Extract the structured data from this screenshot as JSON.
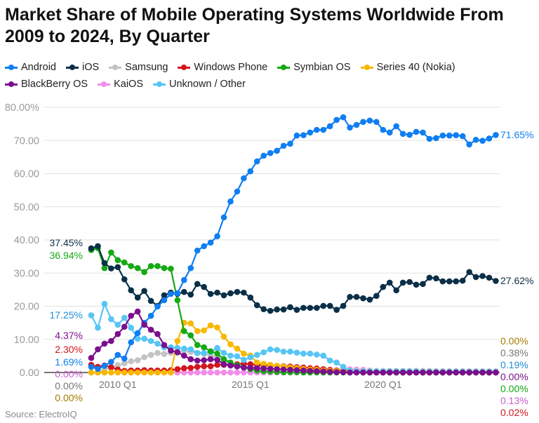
{
  "title": "Market Share of Mobile Operating Systems Worldwide From 2009 to 2024, By Quarter",
  "source": "Source: ElectroIQ",
  "chart_data": {
    "type": "line",
    "title": "Market Share of Mobile Operating Systems Worldwide From 2009 to 2024, By Quarter",
    "xlabel": "",
    "ylabel": "",
    "ylim": [
      0,
      80
    ],
    "grid": true,
    "legend_placement": "top",
    "y_ticks": [
      "0.00",
      "10.00",
      "20.00",
      "30.00",
      "40.00",
      "50.00",
      "60.00",
      "70.00",
      "80.00%"
    ],
    "x_tick_labels": [
      {
        "at": "2010 Q1",
        "label": "2010 Q1"
      },
      {
        "at": "2015 Q1",
        "label": "2015 Q1"
      },
      {
        "at": "2020 Q1",
        "label": "2020 Q1"
      }
    ],
    "x": [
      "2009 Q1",
      "2009 Q2",
      "2009 Q3",
      "2009 Q4",
      "2010 Q1",
      "2010 Q2",
      "2010 Q3",
      "2010 Q4",
      "2011 Q1",
      "2011 Q2",
      "2011 Q3",
      "2011 Q4",
      "2012 Q1",
      "2012 Q2",
      "2012 Q3",
      "2012 Q4",
      "2013 Q1",
      "2013 Q2",
      "2013 Q3",
      "2013 Q4",
      "2014 Q1",
      "2014 Q2",
      "2014 Q3",
      "2014 Q4",
      "2015 Q1",
      "2015 Q2",
      "2015 Q3",
      "2015 Q4",
      "2016 Q1",
      "2016 Q2",
      "2016 Q3",
      "2016 Q4",
      "2017 Q1",
      "2017 Q2",
      "2017 Q3",
      "2017 Q4",
      "2018 Q1",
      "2018 Q2",
      "2018 Q3",
      "2018 Q4",
      "2019 Q1",
      "2019 Q2",
      "2019 Q3",
      "2019 Q4",
      "2020 Q1",
      "2020 Q2",
      "2020 Q3",
      "2020 Q4",
      "2021 Q1",
      "2021 Q2",
      "2021 Q3",
      "2021 Q4",
      "2022 Q1",
      "2022 Q2",
      "2022 Q3",
      "2022 Q4",
      "2023 Q1",
      "2023 Q2",
      "2023 Q3",
      "2023 Q4",
      "2024 Q1",
      "2024 Q2"
    ],
    "series": [
      {
        "name": "Android",
        "color": "#0f7ef2",
        "label_color": "#0f7ef2",
        "start_label": "1.69%",
        "end_label": "71.65%",
        "values": [
          1.69,
          1.1,
          2.0,
          3.2,
          5.3,
          4.2,
          9.1,
          11.9,
          15.0,
          17.1,
          19.9,
          21.8,
          23.7,
          23.9,
          27.9,
          31.5,
          36.8,
          38.1,
          39.2,
          41.1,
          46.8,
          51.6,
          54.6,
          58.6,
          60.7,
          63.7,
          65.4,
          66.2,
          66.9,
          68.4,
          69.0,
          71.5,
          71.6,
          72.4,
          73.2,
          73.2,
          74.3,
          76.2,
          77.0,
          73.9,
          74.7,
          75.6,
          76.0,
          75.6,
          73.2,
          72.4,
          74.3,
          72.0,
          71.7,
          72.6,
          72.4,
          70.5,
          70.7,
          71.5,
          71.5,
          71.6,
          71.3,
          68.8,
          70.2,
          69.9,
          70.6,
          71.65
        ]
      },
      {
        "name": "iOS",
        "color": "#0b2f47",
        "label_color": "#0b2f47",
        "start_label": "37.45%",
        "end_label": "27.62%",
        "values": [
          37.45,
          38.1,
          33.0,
          31.4,
          31.8,
          28.1,
          24.8,
          22.6,
          24.6,
          21.6,
          20.1,
          23.3,
          24.1,
          23.7,
          24.3,
          23.5,
          26.7,
          25.8,
          23.7,
          24.1,
          23.3,
          23.9,
          24.3,
          24.1,
          22.6,
          20.3,
          19.1,
          18.6,
          19.0,
          19.0,
          19.7,
          18.9,
          19.5,
          19.5,
          19.5,
          20.1,
          20.1,
          18.9,
          20.1,
          22.8,
          22.8,
          22.4,
          22.0,
          23.1,
          25.8,
          27.1,
          24.8,
          27.1,
          27.3,
          26.5,
          26.7,
          28.6,
          28.4,
          27.5,
          27.5,
          27.5,
          27.7,
          30.3,
          28.8,
          29.1,
          28.6,
          27.62
        ]
      },
      {
        "name": "Samsung",
        "color": "#c3c3c3",
        "label_color": "#777777",
        "start_label": "0.00%",
        "end_label": "0.38%",
        "values": [
          0,
          0,
          0.8,
          1.5,
          2.2,
          2.8,
          3.4,
          3.7,
          4.6,
          5.3,
          5.9,
          5.6,
          5.9,
          6.0,
          6.5,
          6.2,
          5.8,
          5.6,
          5.1,
          4.5,
          3.6,
          2.8,
          2.3,
          2.0,
          1.7,
          1.5,
          1.4,
          1.3,
          1.2,
          1.1,
          1.0,
          0.9,
          0.9,
          0.8,
          0.8,
          0.7,
          0.7,
          0.6,
          0.6,
          0.6,
          0.5,
          0.5,
          0.5,
          0.5,
          0.5,
          0.5,
          0.5,
          0.5,
          0.5,
          0.5,
          0.5,
          0.5,
          0.45,
          0.45,
          0.4,
          0.4,
          0.4,
          0.4,
          0.4,
          0.4,
          0.38,
          0.38
        ]
      },
      {
        "name": "Windows Phone",
        "color": "#d2161d",
        "label_color": "#d2161d",
        "start_label": "2.30%",
        "end_label": "0.02%",
        "values": [
          2.3,
          1.7,
          2.1,
          1.6,
          0.9,
          0.5,
          0.6,
          0.6,
          0.7,
          0.6,
          0.6,
          0.6,
          0.7,
          1.0,
          1.3,
          1.4,
          1.7,
          1.9,
          1.9,
          2.3,
          2.3,
          2.3,
          2.5,
          2.7,
          2.5,
          2.3,
          2.2,
          2.1,
          2.0,
          1.9,
          1.8,
          1.6,
          1.5,
          1.3,
          1.2,
          1.0,
          0.8,
          0.6,
          0.5,
          0.3,
          0.2,
          0.1,
          0.02,
          0.02,
          0.02,
          0.02,
          0.02,
          0.02,
          0.02,
          0.02,
          0.02,
          0.02,
          0.02,
          0.02,
          0.02,
          0.02,
          0.02,
          0.02,
          0.02,
          0.02,
          0.02,
          0.02
        ]
      },
      {
        "name": "Symbian OS",
        "color": "#14aa14",
        "label_color": "#14aa14",
        "start_label": "36.94%",
        "end_label": "0.00%",
        "values": [
          36.94,
          37.5,
          31.5,
          36.2,
          33.9,
          33.2,
          32.1,
          31.5,
          30.3,
          32.1,
          32.1,
          31.5,
          31.3,
          21.8,
          12.5,
          11.2,
          8.3,
          7.6,
          6.4,
          5.7,
          4.0,
          3.0,
          2.2,
          1.5,
          1.0,
          0.6,
          0.4,
          0.3,
          0.2,
          0.1,
          0.1,
          0.1,
          0,
          0,
          0,
          0,
          0,
          0,
          0,
          0,
          0,
          0,
          0,
          0,
          0,
          0,
          0,
          0,
          0,
          0,
          0,
          0,
          0,
          0,
          0,
          0,
          0,
          0,
          0,
          0,
          0,
          0
        ]
      },
      {
        "name": "Series 40 (Nokia)",
        "color": "#f8b800",
        "label_color": "#a57a00",
        "start_label": "0.00%",
        "end_label": "0.00%",
        "values": [
          0,
          0,
          0,
          0,
          0,
          0,
          0,
          0,
          0,
          0,
          0,
          0,
          0,
          9.5,
          15.0,
          14.8,
          12.5,
          12.7,
          14.2,
          13.6,
          10.8,
          8.5,
          7.2,
          5.7,
          5.1,
          3.0,
          2.6,
          2.3,
          2.0,
          1.8,
          1.5,
          1.3,
          1.1,
          0.9,
          0.8,
          0.6,
          0.5,
          0.4,
          0.3,
          0.2,
          0.1,
          0,
          0,
          0,
          0,
          0,
          0,
          0,
          0,
          0,
          0,
          0,
          0,
          0,
          0,
          0,
          0,
          0,
          0,
          0,
          0,
          0
        ]
      },
      {
        "name": "BlackBerry OS",
        "color": "#7b0f8e",
        "label_color": "#7b0f8e",
        "start_label": "4.37%",
        "end_label": "0.00%",
        "values": [
          4.37,
          7.0,
          8.7,
          9.5,
          11.6,
          13.8,
          17.1,
          18.4,
          14.4,
          12.9,
          11.6,
          8.3,
          6.6,
          6.1,
          5.1,
          4.0,
          3.6,
          3.7,
          4.0,
          3.8,
          2.5,
          2.1,
          1.8,
          1.5,
          1.4,
          1.3,
          1.2,
          1.1,
          1.0,
          0.9,
          0.8,
          0.7,
          0.6,
          0.5,
          0.4,
          0.3,
          0.2,
          0.1,
          0.1,
          0,
          0,
          0,
          0,
          0,
          0,
          0,
          0,
          0,
          0,
          0,
          0,
          0,
          0,
          0,
          0,
          0,
          0,
          0,
          0,
          0,
          0,
          0
        ]
      },
      {
        "name": "KaiOS",
        "color": "#f28de9",
        "label_color": "#c85fd0",
        "start_label": "0.00%",
        "end_label": "0.13%",
        "values": [
          0,
          0,
          0,
          0,
          0,
          0,
          0,
          0,
          0,
          0,
          0,
          0,
          0,
          0,
          0,
          0,
          0,
          0,
          0,
          0,
          0,
          0,
          0,
          0,
          0,
          0,
          0,
          0,
          0,
          0,
          0,
          0,
          0,
          0,
          0,
          0,
          0,
          0.5,
          1.0,
          1.0,
          0.9,
          0.8,
          0.6,
          0.4,
          0.3,
          0.2,
          0.15,
          0.15,
          0.15,
          0.15,
          0.15,
          0.15,
          0.15,
          0.15,
          0.15,
          0.15,
          0.15,
          0.15,
          0.15,
          0.15,
          0.15,
          0.13
        ]
      },
      {
        "name": "Unknown / Other",
        "color": "#57c5f5",
        "label_color": "#1f8fd6",
        "start_label": "17.25%",
        "end_label": "0.19%",
        "values": [
          17.25,
          13.5,
          20.7,
          16.1,
          14.4,
          16.5,
          13.5,
          10.2,
          10.2,
          9.5,
          8.7,
          7.6,
          7.6,
          7.4,
          7.2,
          7.0,
          5.9,
          5.9,
          6.2,
          7.4,
          5.9,
          5.1,
          4.9,
          3.8,
          4.6,
          5.3,
          6.1,
          7.0,
          6.8,
          6.3,
          6.3,
          6.0,
          5.7,
          5.7,
          5.4,
          5.1,
          3.6,
          3.0,
          1.7,
          0.5,
          0.3,
          0.3,
          0.3,
          0.3,
          0.3,
          0.3,
          0.3,
          0.3,
          0.3,
          0.3,
          0.2,
          0.2,
          0.2,
          0.2,
          0.2,
          0.2,
          0.2,
          0.2,
          0.2,
          0.2,
          0.2,
          0.19
        ]
      }
    ]
  }
}
